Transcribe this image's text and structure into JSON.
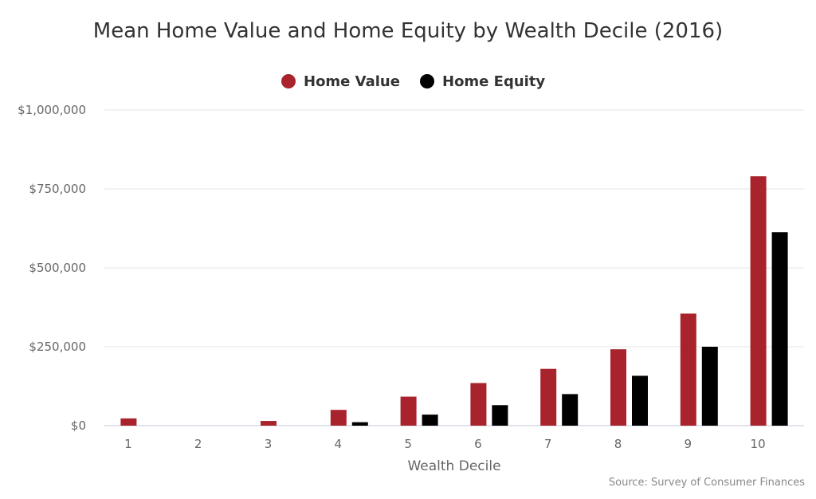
{
  "chart_data": {
    "type": "bar",
    "title": "Mean Home Value and Home Equity by Wealth Decile (2016)",
    "xlabel": "Wealth Decile",
    "ylabel": "",
    "categories": [
      "1",
      "2",
      "3",
      "4",
      "5",
      "6",
      "7",
      "8",
      "9",
      "10"
    ],
    "series": [
      {
        "name": "Home Value",
        "color": "#a8232b",
        "values": [
          23000,
          0,
          15000,
          50000,
          92000,
          135000,
          180000,
          242000,
          355000,
          790000
        ]
      },
      {
        "name": "Home Equity",
        "color": "#000000",
        "values": [
          0,
          0,
          0,
          11000,
          35000,
          65000,
          100000,
          158000,
          250000,
          613000
        ]
      }
    ],
    "ylim": [
      0,
      1000000
    ],
    "yticks": [
      0,
      250000,
      500000,
      750000,
      1000000
    ],
    "ytick_labels": [
      "$0",
      "$250,000",
      "$500,000",
      "$750,000",
      "$1,000,000"
    ],
    "grid": true,
    "legend_position": "top-center"
  },
  "source_note": "Source: Survey of Consumer Finances"
}
